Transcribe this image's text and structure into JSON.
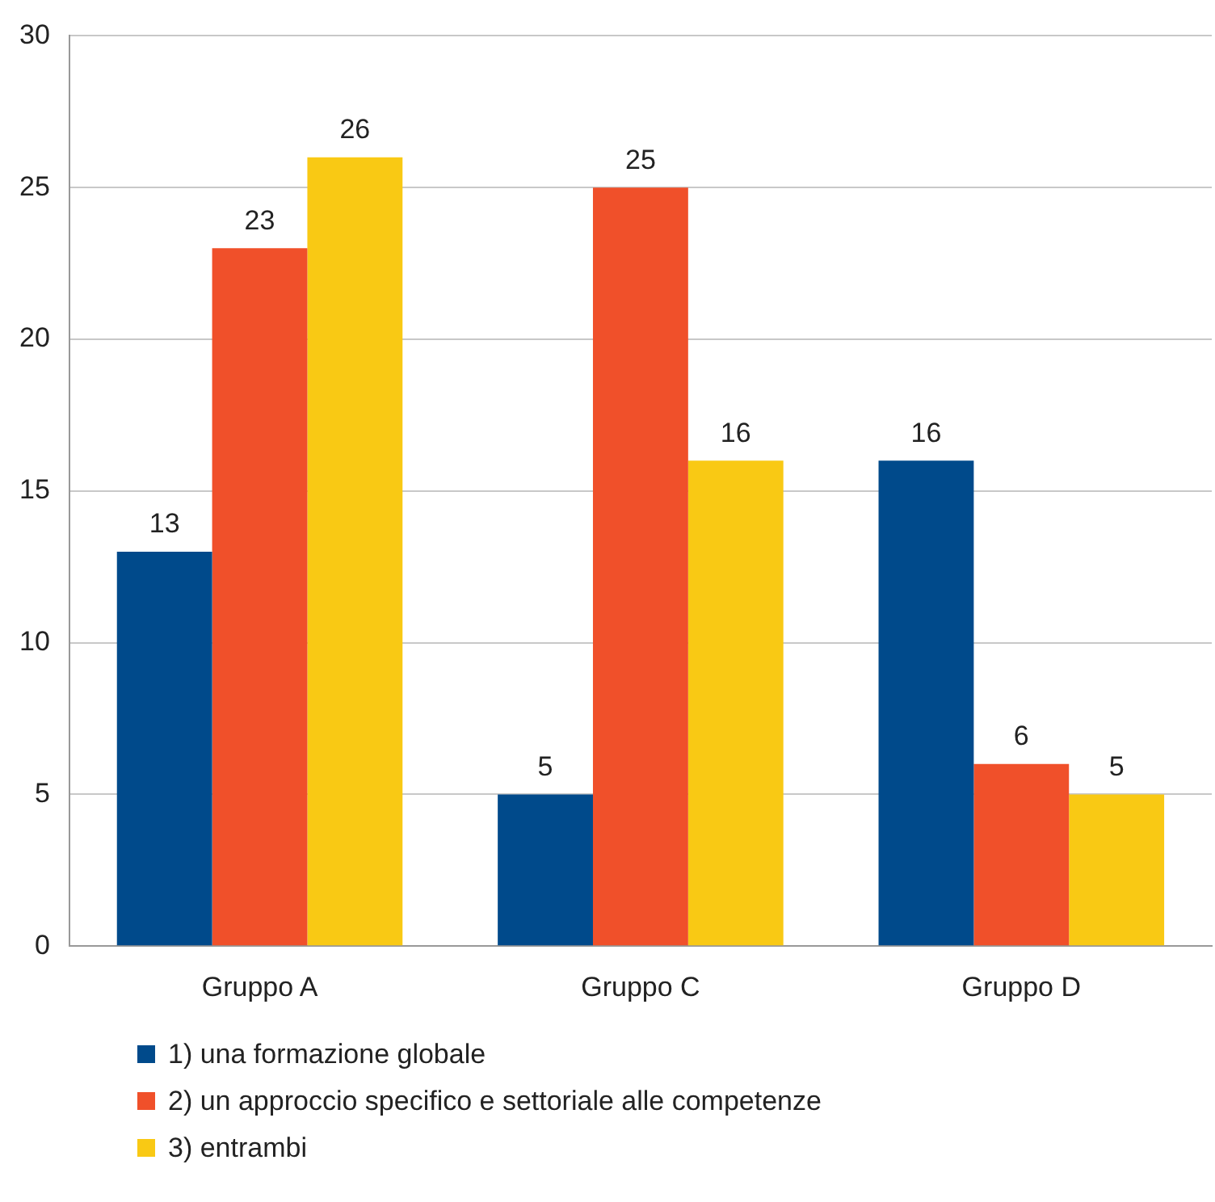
{
  "chart_data": {
    "type": "bar",
    "categories": [
      "Gruppo A",
      "Gruppo C",
      "Gruppo D"
    ],
    "series": [
      {
        "name": "1) una formazione globale",
        "color": "#004a8b",
        "values": [
          13,
          5,
          16
        ]
      },
      {
        "name": "2) un approccio specifico e settoriale alle competenze",
        "color": "#f0502a",
        "values": [
          23,
          25,
          6
        ]
      },
      {
        "name": "3) entrambi",
        "color": "#f9c914",
        "values": [
          26,
          16,
          5
        ]
      }
    ],
    "ylim": [
      0,
      30
    ],
    "yticks": [
      0,
      5,
      10,
      15,
      20,
      25,
      30
    ],
    "grid": "y",
    "legend": "bottom left",
    "data_labels": true
  }
}
